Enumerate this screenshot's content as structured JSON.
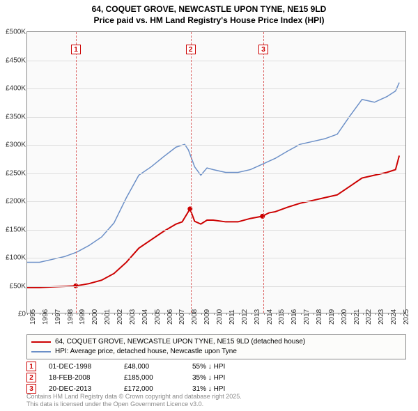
{
  "title_line1": "64, COQUET GROVE, NEWCASTLE UPON TYNE, NE15 9LD",
  "title_line2": "Price paid vs. HM Land Registry's House Price Index (HPI)",
  "chart": {
    "type": "line",
    "background_color": "#fafafa",
    "grid_color": "#dddddd",
    "border_color": "#888888",
    "x_min": 1995,
    "x_max": 2025.5,
    "x_ticks": [
      1995,
      1996,
      1997,
      1998,
      1999,
      2000,
      2001,
      2002,
      2003,
      2004,
      2005,
      2006,
      2007,
      2008,
      2009,
      2010,
      2011,
      2012,
      2013,
      2014,
      2015,
      2016,
      2017,
      2018,
      2019,
      2020,
      2021,
      2022,
      2023,
      2024,
      2025
    ],
    "y_min": 0,
    "y_max": 500000,
    "y_tick_step": 50000,
    "y_tick_labels": [
      "£0",
      "£50K",
      "£100K",
      "£150K",
      "£200K",
      "£250K",
      "£300K",
      "£350K",
      "£400K",
      "£450K",
      "£500K"
    ],
    "series": [
      {
        "name": "price_paid",
        "color": "#cc0000",
        "width": 2,
        "points": [
          [
            1995,
            45000
          ],
          [
            1996,
            45000
          ],
          [
            1997,
            46000
          ],
          [
            1998,
            47000
          ],
          [
            1998.92,
            48000
          ],
          [
            1999.5,
            50000
          ],
          [
            2000,
            52000
          ],
          [
            2001,
            58000
          ],
          [
            2002,
            70000
          ],
          [
            2003,
            90000
          ],
          [
            2004,
            115000
          ],
          [
            2005,
            130000
          ],
          [
            2006,
            145000
          ],
          [
            2007,
            158000
          ],
          [
            2007.5,
            162000
          ],
          [
            2008.13,
            185000
          ],
          [
            2008.5,
            163000
          ],
          [
            2009,
            158000
          ],
          [
            2009.5,
            165000
          ],
          [
            2010,
            165000
          ],
          [
            2011,
            162000
          ],
          [
            2012,
            162000
          ],
          [
            2013,
            168000
          ],
          [
            2013.97,
            172000
          ],
          [
            2014.5,
            178000
          ],
          [
            2015,
            180000
          ],
          [
            2016,
            188000
          ],
          [
            2017,
            195000
          ],
          [
            2018,
            200000
          ],
          [
            2019,
            205000
          ],
          [
            2020,
            210000
          ],
          [
            2021,
            225000
          ],
          [
            2022,
            240000
          ],
          [
            2023,
            245000
          ],
          [
            2024,
            250000
          ],
          [
            2024.7,
            255000
          ],
          [
            2025,
            280000
          ]
        ],
        "markers": [
          [
            1998.92,
            48000
          ],
          [
            2008.13,
            185000
          ],
          [
            2013.97,
            172000
          ]
        ]
      },
      {
        "name": "hpi",
        "color": "#6b8fc7",
        "width": 1.5,
        "points": [
          [
            1995,
            90000
          ],
          [
            1996,
            90000
          ],
          [
            1997,
            95000
          ],
          [
            1998,
            100000
          ],
          [
            1999,
            108000
          ],
          [
            2000,
            120000
          ],
          [
            2001,
            135000
          ],
          [
            2002,
            160000
          ],
          [
            2003,
            205000
          ],
          [
            2004,
            245000
          ],
          [
            2005,
            260000
          ],
          [
            2006,
            278000
          ],
          [
            2007,
            295000
          ],
          [
            2007.7,
            300000
          ],
          [
            2008,
            290000
          ],
          [
            2008.5,
            260000
          ],
          [
            2009,
            245000
          ],
          [
            2009.5,
            258000
          ],
          [
            2010,
            255000
          ],
          [
            2011,
            250000
          ],
          [
            2012,
            250000
          ],
          [
            2013,
            255000
          ],
          [
            2014,
            265000
          ],
          [
            2015,
            275000
          ],
          [
            2016,
            288000
          ],
          [
            2017,
            300000
          ],
          [
            2018,
            305000
          ],
          [
            2019,
            310000
          ],
          [
            2020,
            318000
          ],
          [
            2021,
            350000
          ],
          [
            2022,
            380000
          ],
          [
            2023,
            375000
          ],
          [
            2024,
            385000
          ],
          [
            2024.7,
            395000
          ],
          [
            2025,
            410000
          ]
        ]
      }
    ],
    "vertical_markers": [
      {
        "n": "1",
        "x": 1998.92
      },
      {
        "n": "2",
        "x": 2008.13
      },
      {
        "n": "3",
        "x": 2013.97
      }
    ]
  },
  "legend": {
    "items": [
      {
        "color": "#cc0000",
        "label": "64, COQUET GROVE, NEWCASTLE UPON TYNE, NE15 9LD (detached house)"
      },
      {
        "color": "#6b8fc7",
        "label": "HPI: Average price, detached house, Newcastle upon Tyne"
      }
    ]
  },
  "sales": [
    {
      "n": "1",
      "date": "01-DEC-1998",
      "price": "£48,000",
      "diff": "55% ↓ HPI"
    },
    {
      "n": "2",
      "date": "18-FEB-2008",
      "price": "£185,000",
      "diff": "35% ↓ HPI"
    },
    {
      "n": "3",
      "date": "20-DEC-2013",
      "price": "£172,000",
      "diff": "31% ↓ HPI"
    }
  ],
  "footnote_line1": "Contains HM Land Registry data © Crown copyright and database right 2025.",
  "footnote_line2": "This data is licensed under the Open Government Licence v3.0."
}
